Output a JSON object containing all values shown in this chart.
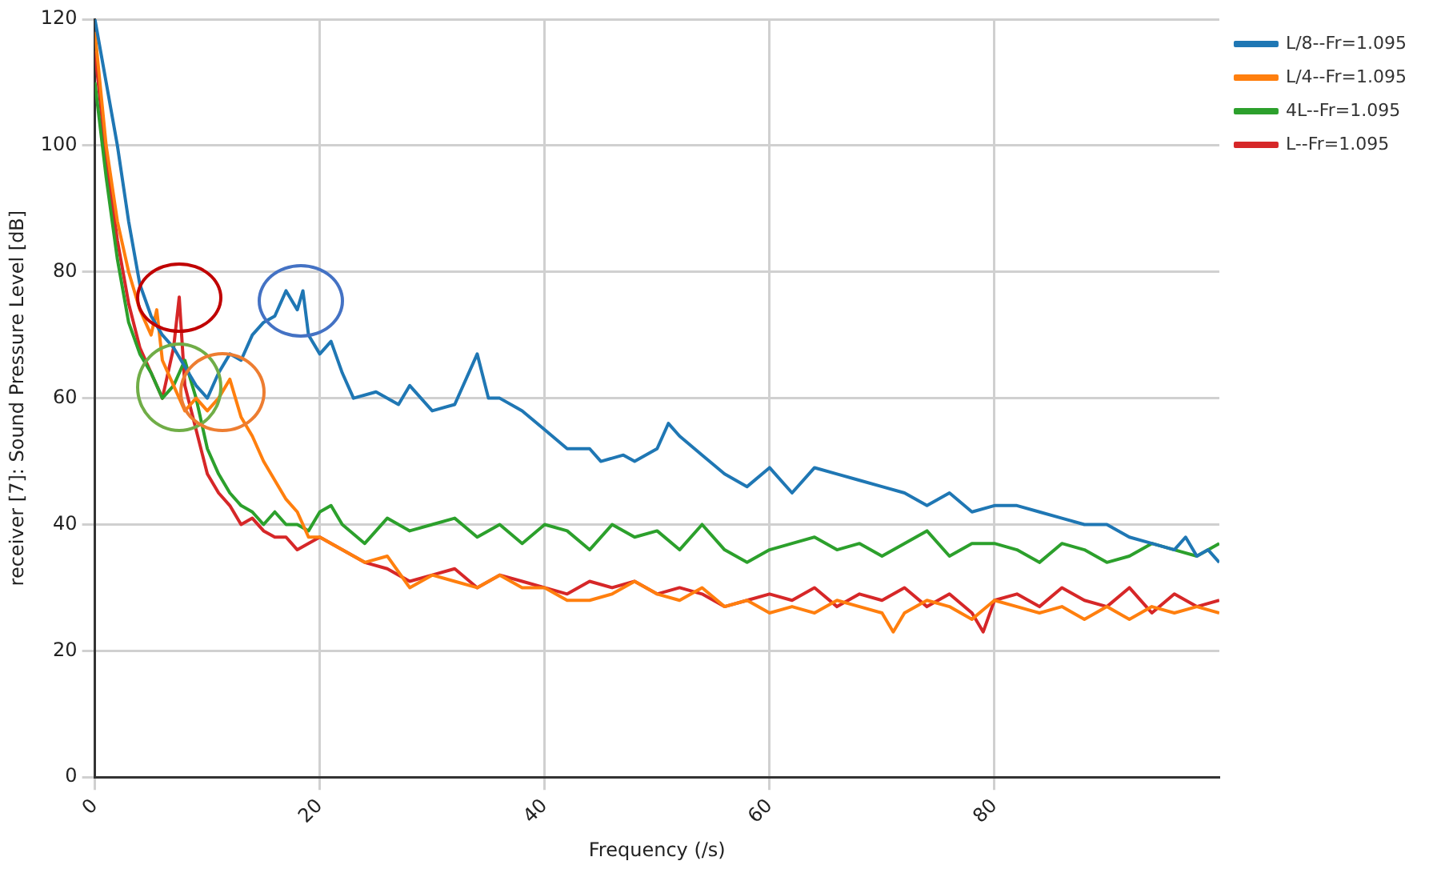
{
  "chart_data": {
    "type": "line",
    "xlabel": "Frequency (/s)",
    "ylabel": "receiver [7]: Sound Pressure Level [dB]",
    "xlim": [
      0,
      100
    ],
    "ylim": [
      0,
      120
    ],
    "xticks": [
      0,
      20,
      40,
      60,
      80
    ],
    "yticks": [
      0,
      20,
      40,
      60,
      80,
      100,
      120
    ],
    "grid": true,
    "legend": "top right",
    "marker": "none",
    "line_style": "solid",
    "series": [
      {
        "name": "L/8--Fr=1.095",
        "color": "#1f77b4",
        "x": [
          0,
          1,
          2,
          3,
          4,
          5,
          6,
          7,
          8,
          9,
          10,
          11,
          12,
          13,
          14,
          15,
          16,
          17,
          18,
          18.5,
          19,
          20,
          21,
          22,
          23,
          25,
          27,
          28,
          30,
          32,
          34,
          35,
          36,
          38,
          40,
          42,
          44,
          45,
          47,
          48,
          50,
          51,
          52,
          54,
          56,
          58,
          60,
          62,
          64,
          66,
          68,
          70,
          72,
          74,
          76,
          78,
          80,
          82,
          84,
          86,
          88,
          90,
          92,
          94,
          96,
          97,
          98,
          99,
          100
        ],
        "values": [
          120,
          110,
          100,
          88,
          78,
          73,
          70,
          68,
          65,
          62,
          60,
          64,
          67,
          66,
          70,
          72,
          73,
          77,
          74,
          77,
          70,
          67,
          69,
          64,
          60,
          61,
          59,
          62,
          58,
          59,
          67,
          60,
          60,
          58,
          55,
          52,
          52,
          50,
          51,
          50,
          52,
          56,
          54,
          51,
          48,
          46,
          49,
          45,
          49,
          48,
          47,
          46,
          45,
          43,
          45,
          42,
          43,
          43,
          42,
          41,
          40,
          40,
          38,
          37,
          36,
          38,
          35,
          36,
          34
        ]
      },
      {
        "name": "L/4--Fr=1.095",
        "color": "#ff7f0e",
        "x": [
          0,
          1,
          2,
          3,
          4,
          5,
          5.5,
          6,
          7,
          8,
          9,
          10,
          11,
          12,
          13,
          14,
          15,
          16,
          17,
          18,
          19,
          20,
          22,
          24,
          26,
          28,
          30,
          32,
          34,
          36,
          38,
          40,
          42,
          44,
          46,
          48,
          50,
          52,
          54,
          56,
          58,
          60,
          62,
          64,
          66,
          68,
          70,
          71,
          72,
          74,
          76,
          78,
          80,
          82,
          84,
          86,
          88,
          90,
          92,
          94,
          96,
          98,
          100
        ],
        "values": [
          118,
          100,
          88,
          80,
          74,
          70,
          74,
          66,
          62,
          58,
          60,
          58,
          60,
          63,
          57,
          54,
          50,
          47,
          44,
          42,
          38,
          38,
          36,
          34,
          35,
          30,
          32,
          31,
          30,
          32,
          30,
          30,
          28,
          28,
          29,
          31,
          29,
          28,
          30,
          27,
          28,
          26,
          27,
          26,
          28,
          27,
          26,
          23,
          26,
          28,
          27,
          25,
          28,
          27,
          26,
          27,
          25,
          27,
          25,
          27,
          26,
          27,
          26
        ]
      },
      {
        "name": "4L--Fr=1.095",
        "color": "#2ca02c",
        "x": [
          0,
          1,
          2,
          3,
          4,
          5,
          6,
          7,
          8,
          9,
          10,
          11,
          12,
          13,
          14,
          15,
          16,
          17,
          18,
          19,
          20,
          21,
          22,
          24,
          26,
          28,
          30,
          32,
          34,
          36,
          38,
          40,
          42,
          44,
          46,
          48,
          50,
          52,
          54,
          56,
          58,
          60,
          62,
          64,
          66,
          68,
          70,
          72,
          74,
          76,
          78,
          80,
          82,
          84,
          86,
          88,
          90,
          92,
          94,
          96,
          98,
          100
        ],
        "values": [
          110,
          95,
          82,
          72,
          67,
          64,
          60,
          62,
          66,
          60,
          52,
          48,
          45,
          43,
          42,
          40,
          42,
          40,
          40,
          39,
          42,
          43,
          40,
          37,
          41,
          39,
          40,
          41,
          38,
          40,
          37,
          40,
          39,
          36,
          40,
          38,
          39,
          36,
          40,
          36,
          34,
          36,
          37,
          38,
          36,
          37,
          35,
          37,
          39,
          35,
          37,
          37,
          36,
          34,
          37,
          36,
          34,
          35,
          37,
          36,
          35,
          37
        ]
      },
      {
        "name": "L--Fr=1.095",
        "color": "#d62728",
        "x": [
          0,
          1,
          2,
          3,
          4,
          5,
          6,
          7,
          7.5,
          8,
          9,
          10,
          11,
          12,
          13,
          14,
          15,
          16,
          17,
          18,
          20,
          22,
          24,
          26,
          28,
          30,
          32,
          34,
          36,
          38,
          40,
          42,
          44,
          46,
          48,
          50,
          52,
          54,
          56,
          58,
          60,
          62,
          64,
          66,
          68,
          70,
          72,
          74,
          76,
          78,
          79,
          80,
          82,
          84,
          86,
          88,
          90,
          92,
          94,
          96,
          98,
          100
        ],
        "values": [
          115,
          98,
          85,
          75,
          68,
          64,
          60,
          68,
          76,
          62,
          55,
          48,
          45,
          43,
          40,
          41,
          39,
          38,
          38,
          36,
          38,
          36,
          34,
          33,
          31,
          32,
          33,
          30,
          32,
          31,
          30,
          29,
          31,
          30,
          31,
          29,
          30,
          29,
          27,
          28,
          29,
          28,
          30,
          27,
          29,
          28,
          30,
          27,
          29,
          26,
          23,
          28,
          29,
          27,
          30,
          28,
          27,
          30,
          26,
          29,
          27,
          28
        ]
      }
    ]
  }
}
